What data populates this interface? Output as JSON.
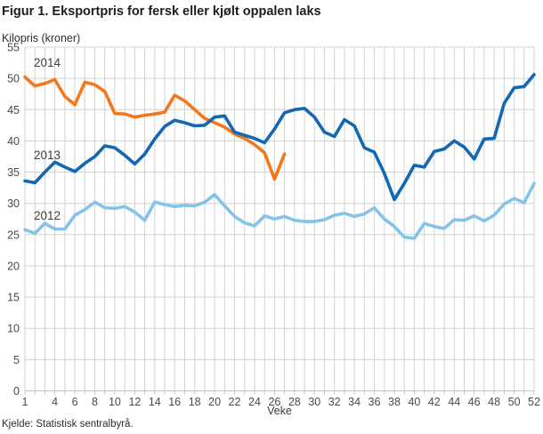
{
  "chart_data": {
    "type": "line",
    "title": "Figur 1. Eksportpris for fersk eller kjølt oppalen laks",
    "ylabel": "Kilopris (kroner)",
    "xlabel": "Veke",
    "source": "Kjelde: Statistisk sentralbyrå.",
    "ylim": [
      0,
      55
    ],
    "y_tick_step": 5,
    "x_range": [
      1,
      52
    ],
    "x_ticks_shown": [
      1,
      4,
      6,
      8,
      10,
      12,
      14,
      16,
      18,
      20,
      22,
      24,
      26,
      28,
      30,
      32,
      34,
      36,
      38,
      40,
      42,
      44,
      46,
      48,
      50,
      52
    ],
    "grid": "both",
    "legend_position": "inline-labels",
    "series": [
      {
        "name": "2014",
        "color": "#f5771d",
        "start_week": 1,
        "values": [
          50.2,
          48.8,
          49.2,
          49.8,
          47.1,
          45.8,
          49.4,
          49.0,
          47.9,
          44.4,
          44.3,
          43.8,
          44.1,
          44.3,
          44.6,
          47.3,
          46.4,
          45.0,
          43.6,
          42.9,
          42.2,
          41.1,
          40.4,
          39.4,
          38.1,
          33.9,
          37.9
        ]
      },
      {
        "name": "2013",
        "color": "#1268b3",
        "start_week": 1,
        "values": [
          33.6,
          33.3,
          35.0,
          36.6,
          35.8,
          35.1,
          36.4,
          37.5,
          39.2,
          38.9,
          37.7,
          36.3,
          37.9,
          40.3,
          42.3,
          43.3,
          42.9,
          42.4,
          42.5,
          43.8,
          44.0,
          41.4,
          40.9,
          40.4,
          39.7,
          41.9,
          44.5,
          45.0,
          45.2,
          43.8,
          41.4,
          40.7,
          43.4,
          42.4,
          38.9,
          38.2,
          34.8,
          30.6,
          33.2,
          36.1,
          35.8,
          38.3,
          38.7,
          40.0,
          39.0,
          37.1,
          40.3,
          40.4,
          46.0,
          48.5,
          48.7,
          50.6
        ]
      },
      {
        "name": "2012",
        "color": "#85c3e8",
        "start_week": 1,
        "values": [
          25.8,
          25.2,
          26.8,
          25.9,
          25.9,
          28.1,
          29.0,
          30.2,
          29.3,
          29.2,
          29.5,
          28.6,
          27.3,
          30.2,
          29.8,
          29.5,
          29.7,
          29.6,
          30.2,
          31.4,
          29.6,
          27.9,
          26.9,
          26.4,
          28.0,
          27.5,
          27.9,
          27.3,
          27.1,
          27.1,
          27.4,
          28.1,
          28.4,
          27.9,
          28.3,
          29.3,
          27.5,
          26.3,
          24.6,
          24.4,
          26.8,
          26.3,
          26.0,
          27.4,
          27.3,
          28.0,
          27.2,
          28.1,
          29.9,
          30.8,
          30.1,
          33.2
        ]
      }
    ],
    "colors": {
      "grid": "#d2d2d2",
      "axis": "#c4c4c4",
      "tick_label": "#4a4a4a",
      "series_label": "#3f3f3f"
    }
  }
}
